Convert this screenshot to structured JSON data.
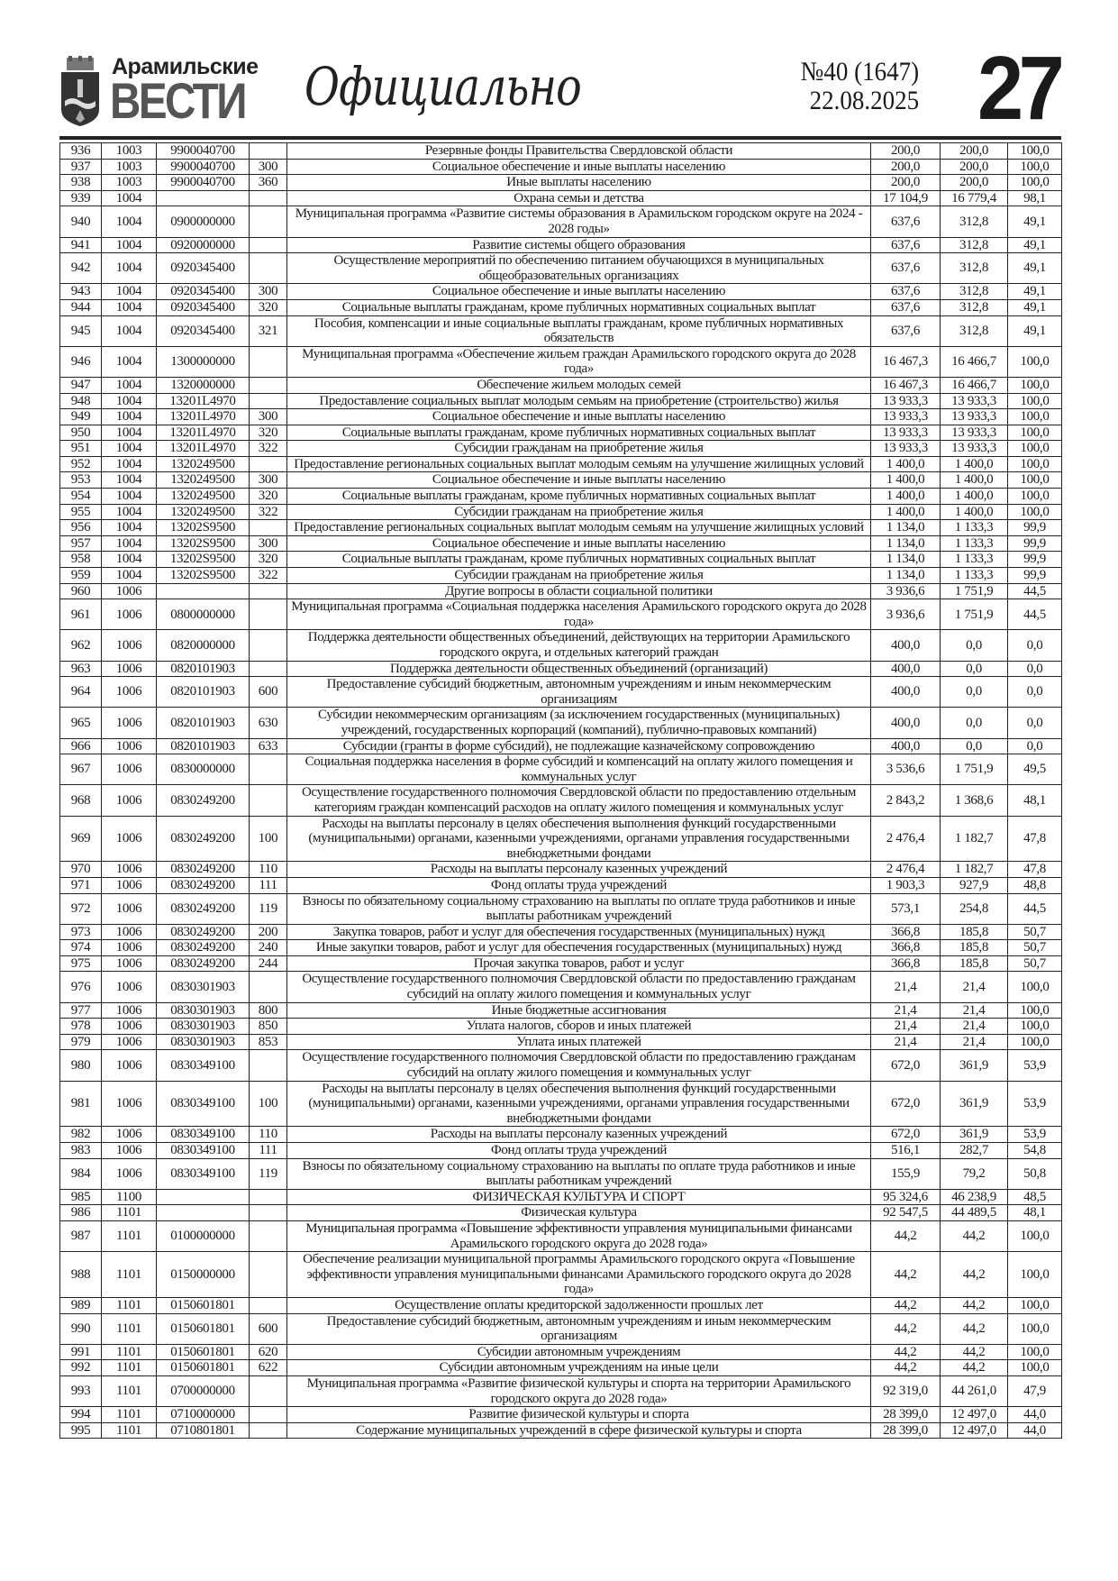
{
  "masthead": {
    "brand_top": "Арамильские",
    "brand_main": "ВЕСТИ",
    "section": "Официально",
    "issue": "№40 (1647)",
    "date": "22.08.2025",
    "page_number": "27"
  },
  "table": {
    "rows": [
      [
        "936",
        "1003",
        "9900040700",
        "",
        "Резервные фонды Правительства Свердловской области",
        "200,0",
        "200,0",
        "100,0"
      ],
      [
        "937",
        "1003",
        "9900040700",
        "300",
        "Социальное обеспечение и иные выплаты населению",
        "200,0",
        "200,0",
        "100,0"
      ],
      [
        "938",
        "1003",
        "9900040700",
        "360",
        "Иные выплаты населению",
        "200,0",
        "200,0",
        "100,0"
      ],
      [
        "939",
        "1004",
        "",
        "",
        "Охрана семьи и детства",
        "17 104,9",
        "16 779,4",
        "98,1"
      ],
      [
        "940",
        "1004",
        "0900000000",
        "",
        "Муниципальная программа «Развитие системы образования в Арамильском городском округе на 2024 - 2028 годы»",
        "637,6",
        "312,8",
        "49,1"
      ],
      [
        "941",
        "1004",
        "0920000000",
        "",
        "Развитие системы общего образования",
        "637,6",
        "312,8",
        "49,1"
      ],
      [
        "942",
        "1004",
        "0920345400",
        "",
        "Осуществление мероприятий по обеспечению питанием обучающихся в муниципальных общеобразовательных организациях",
        "637,6",
        "312,8",
        "49,1"
      ],
      [
        "943",
        "1004",
        "0920345400",
        "300",
        "Социальное обеспечение и иные выплаты населению",
        "637,6",
        "312,8",
        "49,1"
      ],
      [
        "944",
        "1004",
        "0920345400",
        "320",
        "Социальные выплаты гражданам, кроме публичных нормативных социальных выплат",
        "637,6",
        "312,8",
        "49,1"
      ],
      [
        "945",
        "1004",
        "0920345400",
        "321",
        "Пособия, компенсации и иные социальные выплаты гражданам, кроме публичных нормативных обязательств",
        "637,6",
        "312,8",
        "49,1"
      ],
      [
        "946",
        "1004",
        "1300000000",
        "",
        "Муниципальная программа «Обеспечение жильем граждан Арамильского городского округа до 2028 года»",
        "16 467,3",
        "16 466,7",
        "100,0"
      ],
      [
        "947",
        "1004",
        "1320000000",
        "",
        "Обеспечение жильем молодых семей",
        "16 467,3",
        "16 466,7",
        "100,0"
      ],
      [
        "948",
        "1004",
        "13201L4970",
        "",
        "Предоставление социальных выплат молодым семьям на приобретение (строительство) жилья",
        "13 933,3",
        "13 933,3",
        "100,0"
      ],
      [
        "949",
        "1004",
        "13201L4970",
        "300",
        "Социальное обеспечение и иные выплаты населению",
        "13 933,3",
        "13 933,3",
        "100,0"
      ],
      [
        "950",
        "1004",
        "13201L4970",
        "320",
        "Социальные выплаты гражданам, кроме публичных нормативных социальных выплат",
        "13 933,3",
        "13 933,3",
        "100,0"
      ],
      [
        "951",
        "1004",
        "13201L4970",
        "322",
        "Субсидии гражданам на приобретение жилья",
        "13 933,3",
        "13 933,3",
        "100,0"
      ],
      [
        "952",
        "1004",
        "1320249500",
        "",
        "Предоставление региональных социальных выплат молодым семьям на улучшение жилищных условий",
        "1 400,0",
        "1 400,0",
        "100,0"
      ],
      [
        "953",
        "1004",
        "1320249500",
        "300",
        "Социальное обеспечение и иные выплаты населению",
        "1 400,0",
        "1 400,0",
        "100,0"
      ],
      [
        "954",
        "1004",
        "1320249500",
        "320",
        "Социальные выплаты гражданам, кроме публичных нормативных социальных выплат",
        "1 400,0",
        "1 400,0",
        "100,0"
      ],
      [
        "955",
        "1004",
        "1320249500",
        "322",
        "Субсидии гражданам на приобретение жилья",
        "1 400,0",
        "1 400,0",
        "100,0"
      ],
      [
        "956",
        "1004",
        "13202S9500",
        "",
        "Предоставление региональных социальных выплат молодым семьям на улучшение жилищных условий",
        "1 134,0",
        "1 133,3",
        "99,9"
      ],
      [
        "957",
        "1004",
        "13202S9500",
        "300",
        "Социальное обеспечение и иные выплаты населению",
        "1 134,0",
        "1 133,3",
        "99,9"
      ],
      [
        "958",
        "1004",
        "13202S9500",
        "320",
        "Социальные выплаты гражданам, кроме публичных нормативных социальных выплат",
        "1 134,0",
        "1 133,3",
        "99,9"
      ],
      [
        "959",
        "1004",
        "13202S9500",
        "322",
        "Субсидии гражданам на приобретение жилья",
        "1 134,0",
        "1 133,3",
        "99,9"
      ],
      [
        "960",
        "1006",
        "",
        "",
        "Другие вопросы в области социальной политики",
        "3 936,6",
        "1 751,9",
        "44,5"
      ],
      [
        "961",
        "1006",
        "0800000000",
        "",
        "Муниципальная программа «Социальная поддержка населения Арамильского городского округа до 2028 года»",
        "3 936,6",
        "1 751,9",
        "44,5"
      ],
      [
        "962",
        "1006",
        "0820000000",
        "",
        "Поддержка деятельности общественных объединений, действующих на территории Арамильского городского округа, и отдельных категорий граждан",
        "400,0",
        "0,0",
        "0,0"
      ],
      [
        "963",
        "1006",
        "0820101903",
        "",
        "Поддержка деятельности общественных объединений (организаций)",
        "400,0",
        "0,0",
        "0,0"
      ],
      [
        "964",
        "1006",
        "0820101903",
        "600",
        "Предоставление субсидий бюджетным, автономным учреждениям и иным некоммерческим организациям",
        "400,0",
        "0,0",
        "0,0"
      ],
      [
        "965",
        "1006",
        "0820101903",
        "630",
        "Субсидии некоммерческим организациям (за исключением государственных (муниципальных) учреждений, государственных корпораций (компаний), публично-правовых компаний)",
        "400,0",
        "0,0",
        "0,0"
      ],
      [
        "966",
        "1006",
        "0820101903",
        "633",
        "Субсидии (гранты в форме субсидий), не подлежащие казначейскому сопровождению",
        "400,0",
        "0,0",
        "0,0"
      ],
      [
        "967",
        "1006",
        "0830000000",
        "",
        "Социальная поддержка населения в форме субсидий и компенсаций на оплату жилого помещения и коммунальных услуг",
        "3 536,6",
        "1 751,9",
        "49,5"
      ],
      [
        "968",
        "1006",
        "0830249200",
        "",
        "Осуществление государственного полномочия Свердловской области по предоставлению отдельным категориям граждан компенсаций расходов на оплату жилого помещения и коммунальных услуг",
        "2 843,2",
        "1 368,6",
        "48,1"
      ],
      [
        "969",
        "1006",
        "0830249200",
        "100",
        "Расходы на выплаты персоналу в целях обеспечения выполнения функций государственными (муниципальными) органами, казенными учреждениями, органами управления государственными внебюджетными фондами",
        "2 476,4",
        "1 182,7",
        "47,8"
      ],
      [
        "970",
        "1006",
        "0830249200",
        "110",
        "Расходы на выплаты персоналу казенных учреждений",
        "2 476,4",
        "1 182,7",
        "47,8"
      ],
      [
        "971",
        "1006",
        "0830249200",
        "111",
        "Фонд оплаты труда учреждений",
        "1 903,3",
        "927,9",
        "48,8"
      ],
      [
        "972",
        "1006",
        "0830249200",
        "119",
        "Взносы по обязательному социальному страхованию на выплаты по оплате труда работников и иные выплаты работникам учреждений",
        "573,1",
        "254,8",
        "44,5"
      ],
      [
        "973",
        "1006",
        "0830249200",
        "200",
        "Закупка товаров, работ и услуг для обеспечения государственных (муниципальных) нужд",
        "366,8",
        "185,8",
        "50,7"
      ],
      [
        "974",
        "1006",
        "0830249200",
        "240",
        "Иные закупки товаров, работ и услуг для обеспечения государственных (муниципальных) нужд",
        "366,8",
        "185,8",
        "50,7"
      ],
      [
        "975",
        "1006",
        "0830249200",
        "244",
        "Прочая закупка товаров, работ и услуг",
        "366,8",
        "185,8",
        "50,7"
      ],
      [
        "976",
        "1006",
        "0830301903",
        "",
        "Осуществление государственного полномочия Свердловской области по предоставлению гражданам субсидий на оплату жилого помещения и коммунальных услуг",
        "21,4",
        "21,4",
        "100,0"
      ],
      [
        "977",
        "1006",
        "0830301903",
        "800",
        "Иные бюджетные ассигнования",
        "21,4",
        "21,4",
        "100,0"
      ],
      [
        "978",
        "1006",
        "0830301903",
        "850",
        "Уплата налогов, сборов и иных платежей",
        "21,4",
        "21,4",
        "100,0"
      ],
      [
        "979",
        "1006",
        "0830301903",
        "853",
        "Уплата иных платежей",
        "21,4",
        "21,4",
        "100,0"
      ],
      [
        "980",
        "1006",
        "0830349100",
        "",
        "Осуществление государственного полномочия Свердловской области по предоставлению гражданам субсидий на оплату жилого помещения и коммунальных услуг",
        "672,0",
        "361,9",
        "53,9"
      ],
      [
        "981",
        "1006",
        "0830349100",
        "100",
        "Расходы на выплаты персоналу в целях обеспечения выполнения функций государственными (муниципальными) органами, казенными учреждениями, органами управления государственными внебюджетными фондами",
        "672,0",
        "361,9",
        "53,9"
      ],
      [
        "982",
        "1006",
        "0830349100",
        "110",
        "Расходы на выплаты персоналу казенных учреждений",
        "672,0",
        "361,9",
        "53,9"
      ],
      [
        "983",
        "1006",
        "0830349100",
        "111",
        "Фонд оплаты труда учреждений",
        "516,1",
        "282,7",
        "54,8"
      ],
      [
        "984",
        "1006",
        "0830349100",
        "119",
        "Взносы по обязательному социальному страхованию на выплаты по оплате труда работников и иные выплаты работникам учреждений",
        "155,9",
        "79,2",
        "50,8"
      ],
      [
        "985",
        "1100",
        "",
        "",
        "ФИЗИЧЕСКАЯ КУЛЬТУРА И СПОРТ",
        "95 324,6",
        "46 238,9",
        "48,5"
      ],
      [
        "986",
        "1101",
        "",
        "",
        "Физическая культура",
        "92 547,5",
        "44 489,5",
        "48,1"
      ],
      [
        "987",
        "1101",
        "0100000000",
        "",
        "Муниципальная программа «Повышение эффективности управления муниципальными финансами Арамильского городского округа до 2028 года»",
        "44,2",
        "44,2",
        "100,0"
      ],
      [
        "988",
        "1101",
        "0150000000",
        "",
        "Обеспечение реализации муниципальной программы Арамильского городского округа «Повышение эффективности управления муниципальными финансами Арамильского городского округа до 2028 года»",
        "44,2",
        "44,2",
        "100,0"
      ],
      [
        "989",
        "1101",
        "0150601801",
        "",
        "Осуществление оплаты кредиторской задолженности прошлых лет",
        "44,2",
        "44,2",
        "100,0"
      ],
      [
        "990",
        "1101",
        "0150601801",
        "600",
        "Предоставление субсидий бюджетным, автономным учреждениям и иным некоммерческим организациям",
        "44,2",
        "44,2",
        "100,0"
      ],
      [
        "991",
        "1101",
        "0150601801",
        "620",
        "Субсидии автономным учреждениям",
        "44,2",
        "44,2",
        "100,0"
      ],
      [
        "992",
        "1101",
        "0150601801",
        "622",
        "Субсидии автономным учреждениям на иные цели",
        "44,2",
        "44,2",
        "100,0"
      ],
      [
        "993",
        "1101",
        "0700000000",
        "",
        "Муниципальная программа «Развитие физической культуры и спорта на территории Арамильского городского округа до 2028 года»",
        "92 319,0",
        "44 261,0",
        "47,9"
      ],
      [
        "994",
        "1101",
        "0710000000",
        "",
        "Развитие физической культуры и спорта",
        "28 399,0",
        "12 497,0",
        "44,0"
      ],
      [
        "995",
        "1101",
        "0710801801",
        "",
        "Содержание муниципальных учреждений в сфере физической культуры и спорта",
        "28 399,0",
        "12 497,0",
        "44,0"
      ]
    ]
  }
}
